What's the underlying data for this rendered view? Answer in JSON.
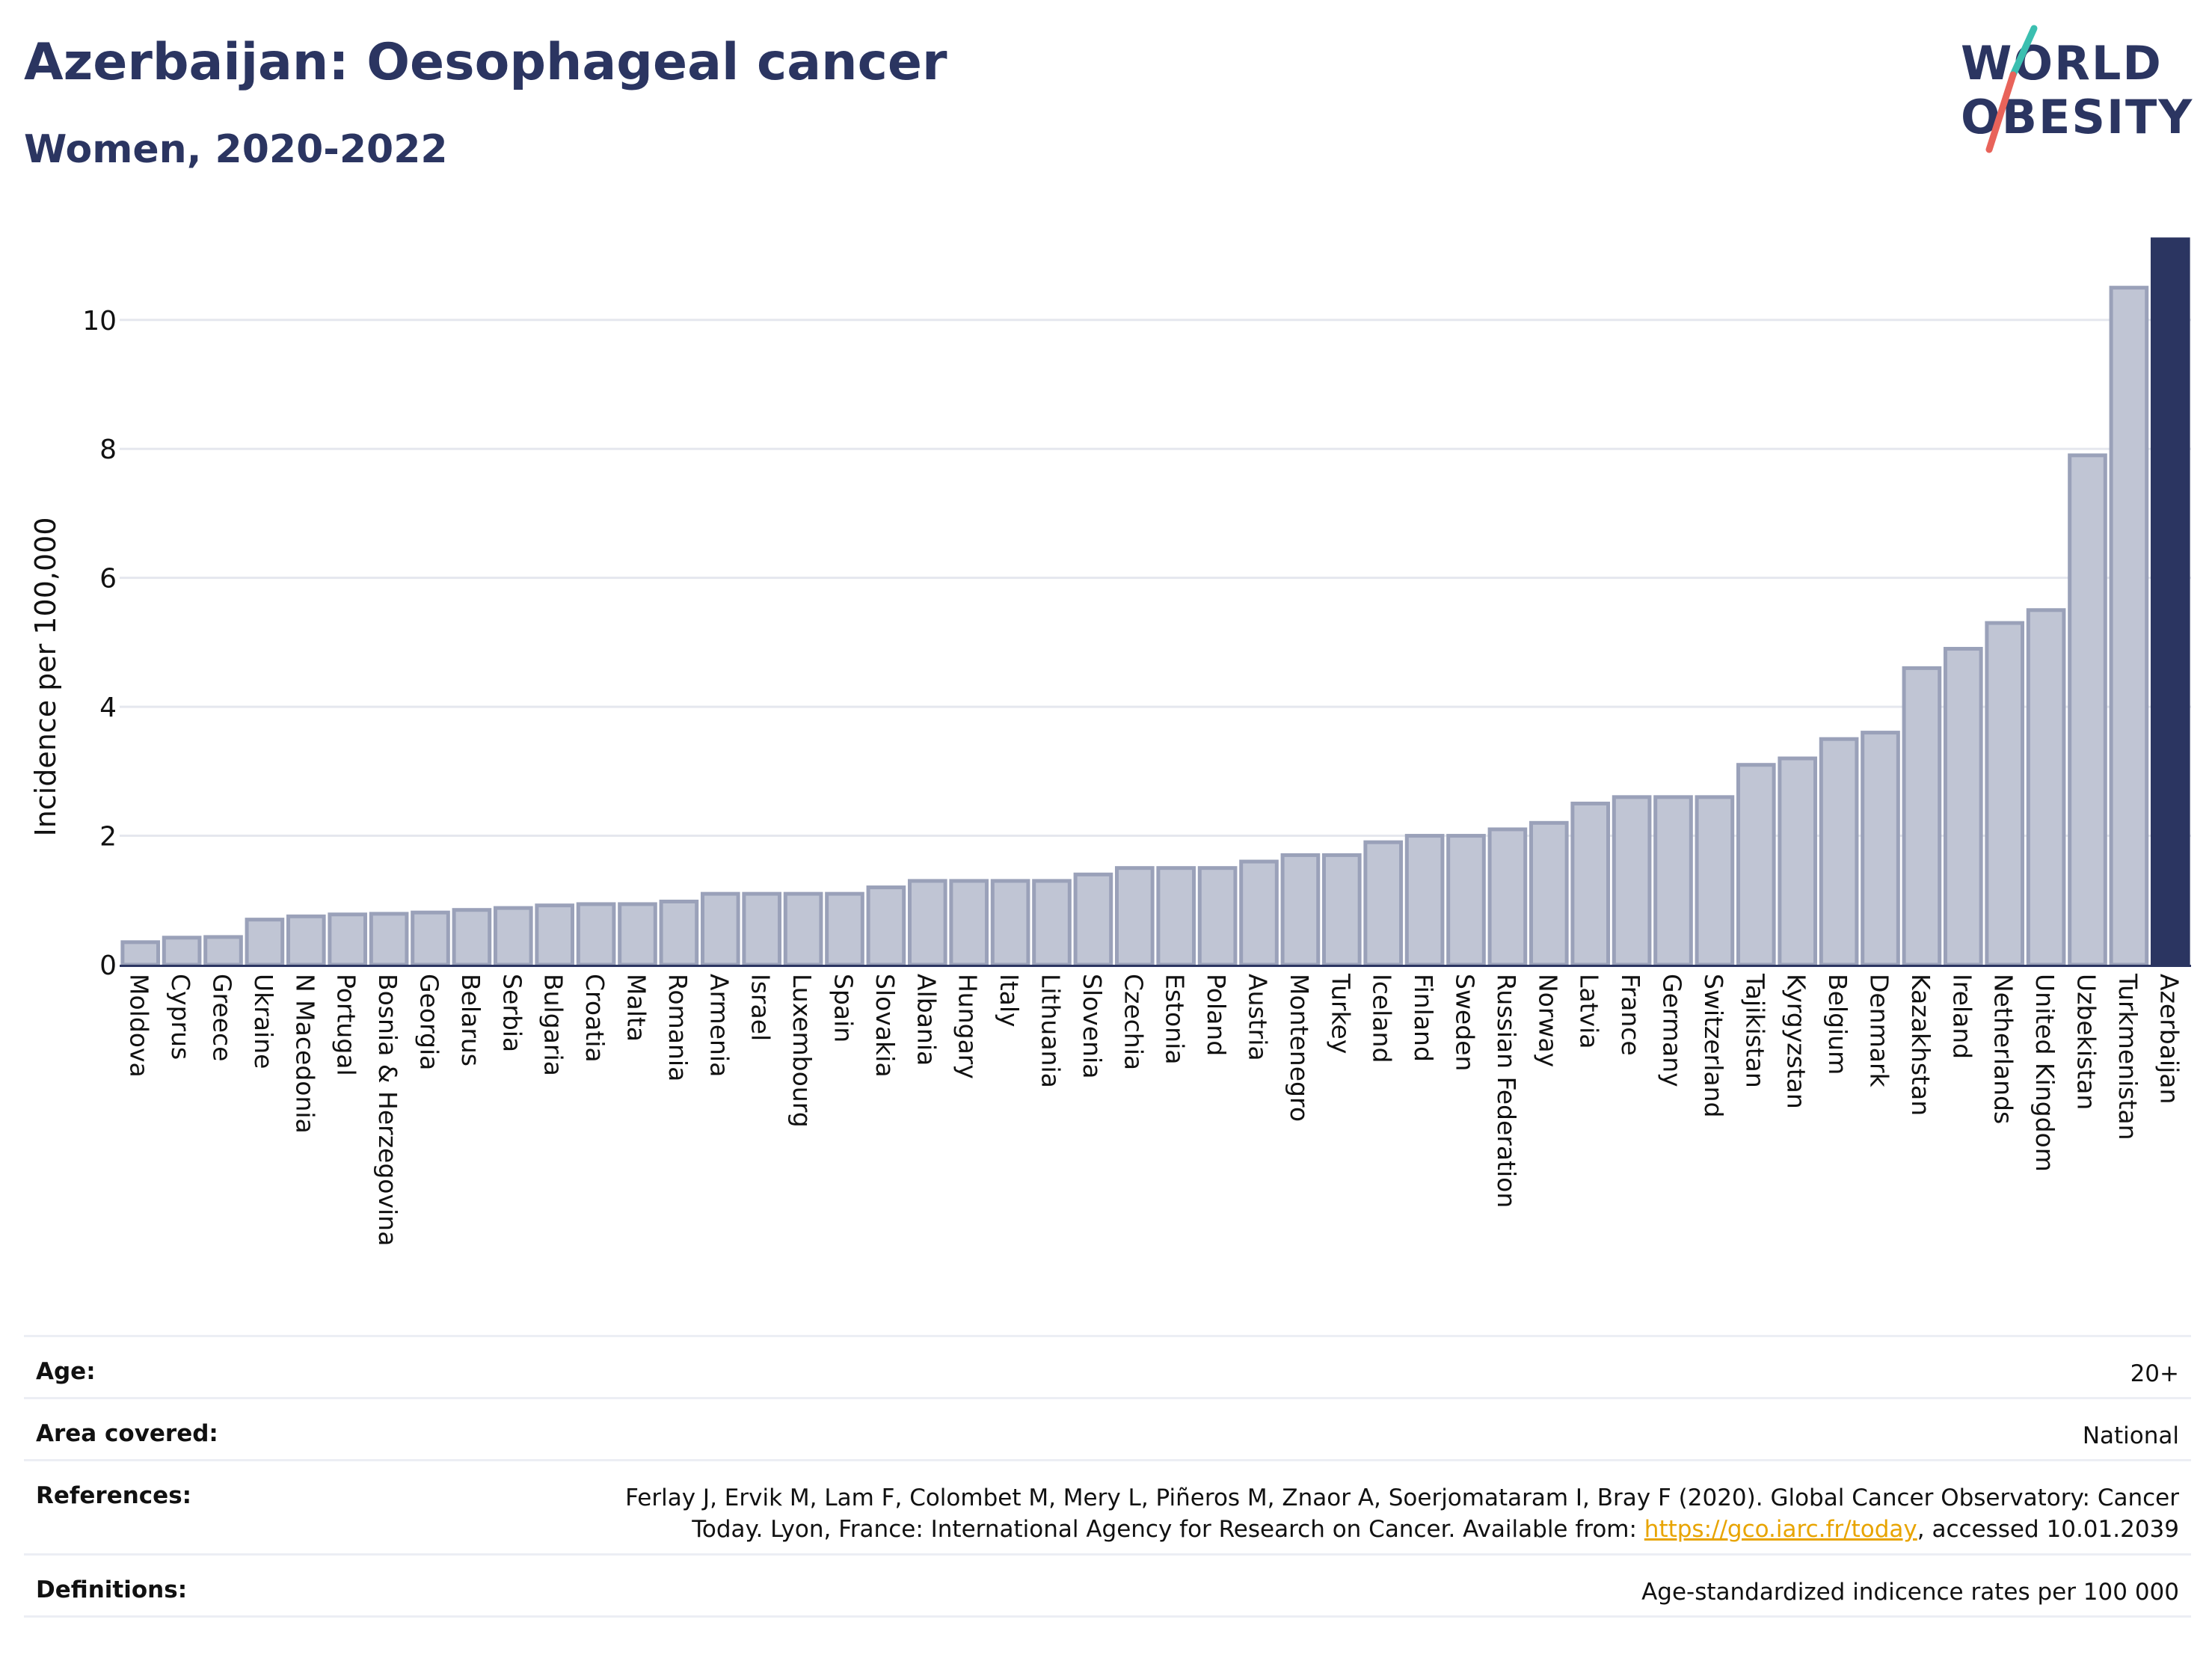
{
  "header": {
    "title": "Azerbaijan: Oesophageal cancer",
    "subtitle": "Women, 2020-2022"
  },
  "logo": {
    "line1": "WORLD",
    "line2": "OBESITY",
    "colors": {
      "text": "#2b3561",
      "slash_top": "#3bbfb0",
      "slash_bottom": "#e8635a"
    }
  },
  "chart_data": {
    "type": "bar",
    "ylabel": "Incidence per 100,000",
    "ylim": [
      0,
      11.25
    ],
    "yticks": [
      0,
      2,
      4,
      6,
      8,
      10
    ],
    "grid": true,
    "highlight": "Azerbaijan",
    "colors": {
      "bar": "#c0c5d4",
      "bar_edge": "#9aa1b9",
      "highlight": "#2b3561",
      "grid": "#e5e7ee"
    },
    "categories": [
      "Moldova",
      "Cyprus",
      "Greece",
      "Ukraine",
      "N Macedonia",
      "Portugal",
      "Bosnia & Herzegovina",
      "Georgia",
      "Belarus",
      "Serbia",
      "Bulgaria",
      "Croatia",
      "Malta",
      "Romania",
      "Armenia",
      "Israel",
      "Luxembourg",
      "Spain",
      "Slovakia",
      "Albania",
      "Hungary",
      "Italy",
      "Lithuania",
      "Slovenia",
      "Czechia",
      "Estonia",
      "Poland",
      "Austria",
      "Montenegro",
      "Turkey",
      "Iceland",
      "Finland",
      "Sweden",
      "Russian Federation",
      "Norway",
      "Latvia",
      "France",
      "Germany",
      "Switzerland",
      "Tajikistan",
      "Kyrgyzstan",
      "Belgium",
      "Denmark",
      "Kazakhstan",
      "Ireland",
      "Netherlands",
      "United Kingdom",
      "Uzbekistan",
      "Turkmenistan",
      "Azerbaijan"
    ],
    "values": [
      0.35,
      0.42,
      0.43,
      0.7,
      0.75,
      0.78,
      0.79,
      0.81,
      0.85,
      0.88,
      0.92,
      0.94,
      0.94,
      0.98,
      1.1,
      1.1,
      1.1,
      1.1,
      1.2,
      1.3,
      1.3,
      1.3,
      1.3,
      1.4,
      1.5,
      1.5,
      1.5,
      1.6,
      1.7,
      1.7,
      1.9,
      2.0,
      2.0,
      2.1,
      2.2,
      2.5,
      2.6,
      2.6,
      2.6,
      3.1,
      3.2,
      3.5,
      3.6,
      4.6,
      4.9,
      5.3,
      5.5,
      7.9,
      10.5,
      11.25
    ]
  },
  "metadata": {
    "age": {
      "label": "Age:",
      "value": "20+"
    },
    "area": {
      "label": "Area covered:",
      "value": "National"
    },
    "references": {
      "label": "References:",
      "text_line1": "Ferlay J, Ervik M, Lam F, Colombet M, Mery L, Piñeros M, Znaor A, Soerjomataram I, Bray F (2020). Global Cancer Observatory: Cancer",
      "text_line2_pre": "Today. Lyon, France: International Agency for Research on Cancer. Available from: ",
      "link": "https://gco.iarc.fr/today",
      "text_line2_post": ", accessed 10.01.2039"
    },
    "definitions": {
      "label": "Definitions:",
      "value": "Age-standardized indicence rates per 100 000"
    }
  }
}
